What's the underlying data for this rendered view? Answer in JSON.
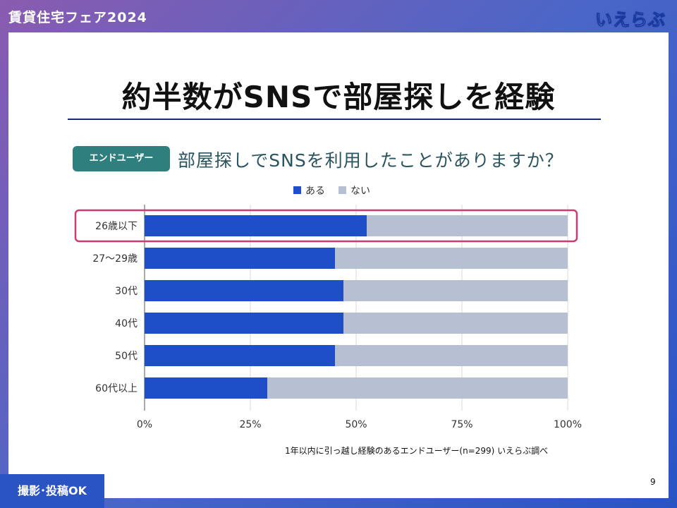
{
  "header": {
    "event_title": "賃貸住宅フェア2024",
    "logo_text": "いえらぶ"
  },
  "slide": {
    "title": "約半数がSNSで部屋探しを経験",
    "badge": "エンドユーザー",
    "question": "部屋探しでSNSを利用したことがありますか？",
    "source": "1年以内に引っ越し経験のあるエンドユーザー(n=299) いえらぶ調べ",
    "page_number": "9"
  },
  "footer": {
    "photo_ok": "撮影･投稿OK"
  },
  "colors": {
    "series_yes": "#1f4fc8",
    "series_no": "#b7bfd3",
    "highlight": "#cc3b72"
  },
  "chart_data": {
    "type": "bar",
    "orientation": "horizontal",
    "stacked": true,
    "categories": [
      "26歳以下",
      "27〜29歳",
      "30代",
      "40代",
      "50代",
      "60代以上"
    ],
    "series": [
      {
        "name": "ある",
        "values": [
          52.5,
          45,
          47,
          47,
          45,
          29
        ]
      },
      {
        "name": "ない",
        "values": [
          47.5,
          55,
          53,
          53,
          55,
          71
        ]
      }
    ],
    "x_ticks": [
      "0%",
      "25%",
      "50%",
      "75%",
      "100%"
    ],
    "xlim": [
      0,
      100
    ],
    "grid": true,
    "legend_position": "top",
    "highlighted_category": "26歳以下"
  }
}
